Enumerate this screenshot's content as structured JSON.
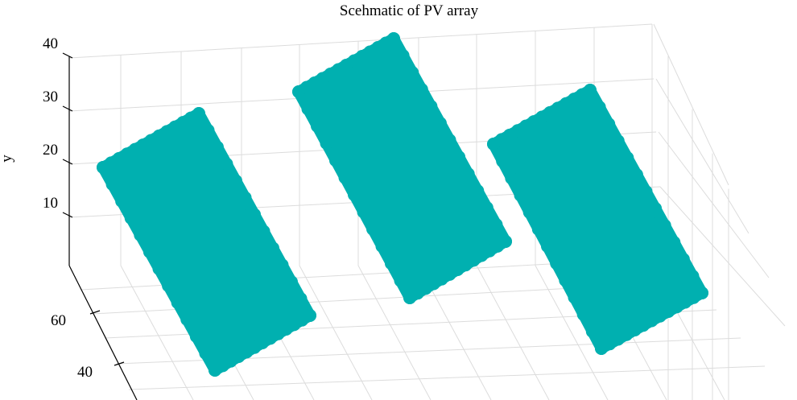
{
  "chart_data": {
    "type": "scatter",
    "title": "Scehmatic of PV array",
    "ylabel": "y",
    "y_ticks": [
      "10",
      "20",
      "30",
      "40"
    ],
    "x_ticks": [
      "40",
      "60"
    ],
    "grid": true,
    "marker_color": "#00b0b0",
    "series": [
      {
        "corners": [
          [
            128,
            208
          ],
          [
            247,
            141
          ],
          [
            385,
            392
          ],
          [
            267,
            460
          ]
        ]
      },
      {
        "corners": [
          [
            371,
            114
          ],
          [
            489,
            48
          ],
          [
            628,
            300
          ],
          [
            509,
            370
          ]
        ]
      },
      {
        "corners": [
          [
            613,
            179
          ],
          [
            733,
            112
          ],
          [
            872,
            364
          ],
          [
            747,
            433
          ]
        ]
      }
    ]
  }
}
